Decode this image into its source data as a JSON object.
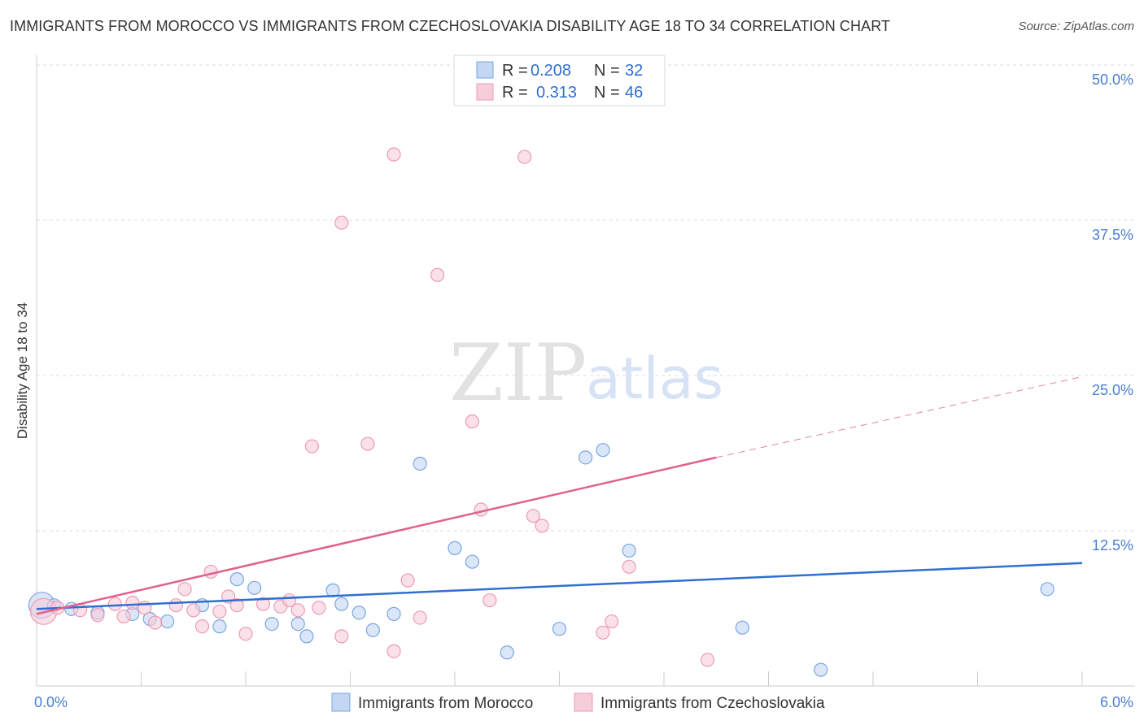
{
  "title": "IMMIGRANTS FROM MOROCCO VS IMMIGRANTS FROM CZECHOSLOVAKIA DISABILITY AGE 18 TO 34 CORRELATION CHART",
  "source": "Source: ZipAtlas.com",
  "watermark": {
    "zip": "ZIP",
    "atlas": "atlas"
  },
  "chart_data": {
    "type": "scatter",
    "ylabel": "Disability Age 18 to 34",
    "xlim": [
      0,
      6
    ],
    "ylim": [
      0,
      50
    ],
    "x_tick_labels": [
      "0.0%",
      "6.0%"
    ],
    "y_ticks": [
      12.5,
      25.0,
      37.5,
      50.0
    ],
    "y_tick_labels": [
      "12.5%",
      "25.0%",
      "37.5%",
      "50.0%"
    ],
    "grid": true,
    "legend_position": "top-center",
    "series": [
      {
        "name": "Immigrants from Morocco",
        "color": "#7aa6e0",
        "fill": "#c3d7f3",
        "line_color": "#2f6fd0",
        "r_label": "R =",
        "r_value": "0.208",
        "n_label": "N =",
        "n_value": "32",
        "trend": {
          "x0": 0,
          "y0": 6.2,
          "x1": 6,
          "y1": 9.9
        },
        "points": [
          {
            "x": 0.03,
            "y": 6.5,
            "big": true
          },
          {
            "x": 0.1,
            "y": 6.5
          },
          {
            "x": 0.2,
            "y": 6.2
          },
          {
            "x": 0.35,
            "y": 5.9
          },
          {
            "x": 0.55,
            "y": 5.8
          },
          {
            "x": 0.65,
            "y": 5.4
          },
          {
            "x": 0.75,
            "y": 5.2
          },
          {
            "x": 0.95,
            "y": 6.5
          },
          {
            "x": 1.05,
            "y": 4.8
          },
          {
            "x": 1.15,
            "y": 8.6
          },
          {
            "x": 1.25,
            "y": 7.9
          },
          {
            "x": 1.35,
            "y": 5.0
          },
          {
            "x": 1.5,
            "y": 5.0
          },
          {
            "x": 1.55,
            "y": 4.0
          },
          {
            "x": 1.7,
            "y": 7.7
          },
          {
            "x": 1.75,
            "y": 6.6
          },
          {
            "x": 1.85,
            "y": 5.9
          },
          {
            "x": 1.93,
            "y": 4.5
          },
          {
            "x": 2.05,
            "y": 5.8
          },
          {
            "x": 2.2,
            "y": 17.9
          },
          {
            "x": 2.4,
            "y": 11.1
          },
          {
            "x": 2.5,
            "y": 10.0
          },
          {
            "x": 2.7,
            "y": 2.7
          },
          {
            "x": 3.0,
            "y": 4.6
          },
          {
            "x": 3.15,
            "y": 18.4
          },
          {
            "x": 3.25,
            "y": 19.0
          },
          {
            "x": 3.4,
            "y": 10.9
          },
          {
            "x": 4.05,
            "y": 4.7
          },
          {
            "x": 4.5,
            "y": 1.3
          },
          {
            "x": 5.8,
            "y": 7.8
          }
        ]
      },
      {
        "name": "Immigrants from Czechoslovakia",
        "color": "#ee9ab5",
        "fill": "#f7cdda",
        "line_color": "#e0628c",
        "r_label": "R =",
        "r_value": "0.313",
        "n_label": "N =",
        "n_value": "46",
        "trend": {
          "x0": 0,
          "y0": 5.8,
          "x1": 3.9,
          "y1": 18.4
        },
        "trend_dashed": {
          "x0": 3.9,
          "y0": 18.4,
          "x1": 6,
          "y1": 24.9
        },
        "points": [
          {
            "x": 0.04,
            "y": 6.0,
            "big": true
          },
          {
            "x": 0.12,
            "y": 6.3
          },
          {
            "x": 0.25,
            "y": 6.1
          },
          {
            "x": 0.35,
            "y": 5.7
          },
          {
            "x": 0.45,
            "y": 6.6
          },
          {
            "x": 0.5,
            "y": 5.6
          },
          {
            "x": 0.55,
            "y": 6.7
          },
          {
            "x": 0.62,
            "y": 6.3
          },
          {
            "x": 0.68,
            "y": 5.1
          },
          {
            "x": 0.8,
            "y": 6.5
          },
          {
            "x": 0.85,
            "y": 7.8
          },
          {
            "x": 0.9,
            "y": 6.1
          },
          {
            "x": 0.95,
            "y": 4.8
          },
          {
            "x": 1.0,
            "y": 9.2
          },
          {
            "x": 1.05,
            "y": 6.0
          },
          {
            "x": 1.1,
            "y": 7.2
          },
          {
            "x": 1.15,
            "y": 6.5
          },
          {
            "x": 1.2,
            "y": 4.2
          },
          {
            "x": 1.3,
            "y": 6.6
          },
          {
            "x": 1.4,
            "y": 6.4
          },
          {
            "x": 1.45,
            "y": 6.9
          },
          {
            "x": 1.5,
            "y": 6.1
          },
          {
            "x": 1.58,
            "y": 19.3
          },
          {
            "x": 1.62,
            "y": 6.3
          },
          {
            "x": 1.75,
            "y": 4.0
          },
          {
            "x": 1.75,
            "y": 37.3
          },
          {
            "x": 1.9,
            "y": 19.5
          },
          {
            "x": 2.05,
            "y": 2.8
          },
          {
            "x": 2.05,
            "y": 42.8
          },
          {
            "x": 2.13,
            "y": 8.5
          },
          {
            "x": 2.2,
            "y": 5.5
          },
          {
            "x": 2.3,
            "y": 33.1
          },
          {
            "x": 2.5,
            "y": 21.3
          },
          {
            "x": 2.55,
            "y": 14.2
          },
          {
            "x": 2.6,
            "y": 6.9
          },
          {
            "x": 2.8,
            "y": 42.6
          },
          {
            "x": 2.85,
            "y": 13.7
          },
          {
            "x": 2.9,
            "y": 12.9
          },
          {
            "x": 3.25,
            "y": 4.3
          },
          {
            "x": 3.3,
            "y": 5.2
          },
          {
            "x": 3.4,
            "y": 9.6
          },
          {
            "x": 3.85,
            "y": 2.1
          }
        ]
      }
    ]
  }
}
